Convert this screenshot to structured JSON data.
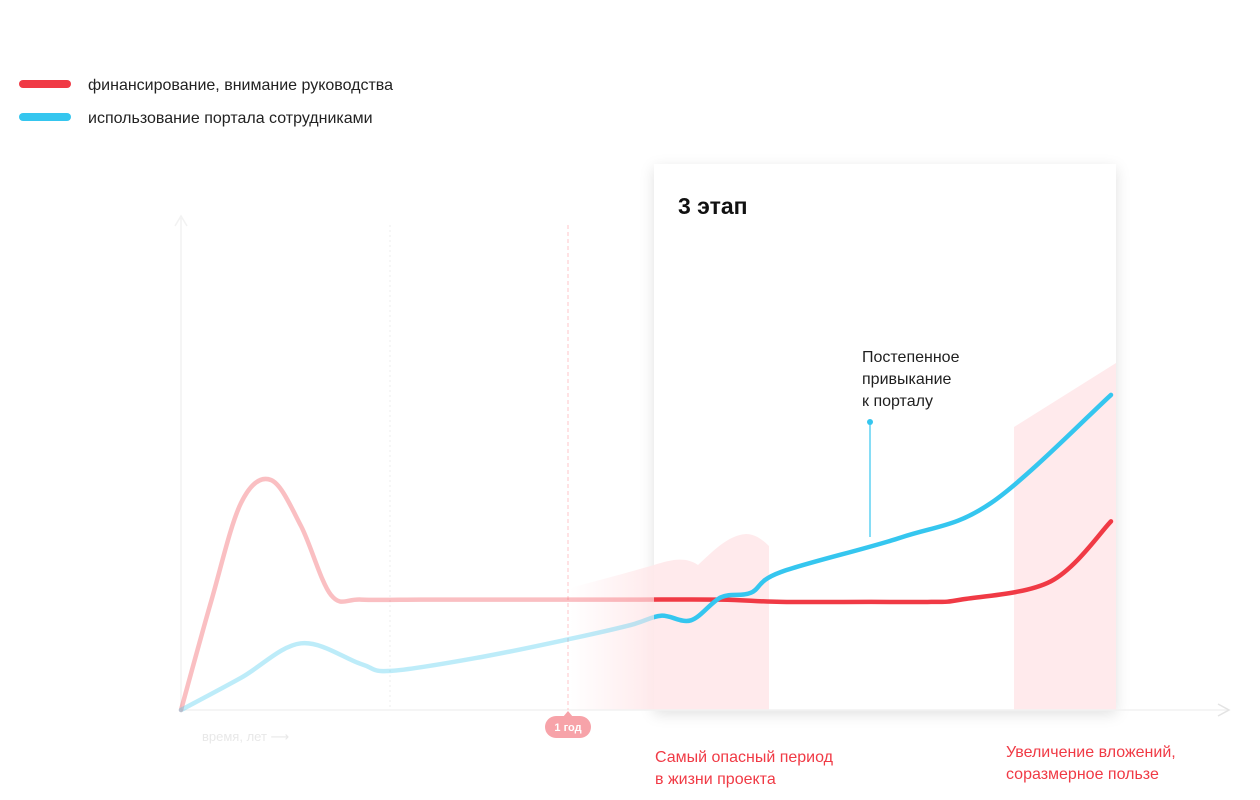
{
  "colors": {
    "funding": "#f03a45",
    "usage": "#35c6ef",
    "accent_text": "#f03a45",
    "band": "#ffe8ea"
  },
  "legend": [
    {
      "label": "финансирование, внимание руководства",
      "color": "#f03a45"
    },
    {
      "label": "использование портала сотрудниками",
      "color": "#35c6ef"
    }
  ],
  "stage": {
    "title": "3 этап"
  },
  "callout": {
    "lines": [
      "Постепенное",
      "привыкание",
      "к порталу"
    ]
  },
  "notes": [
    {
      "lines": [
        "Самый опасный период",
        "в жизни проекта"
      ]
    },
    {
      "lines": [
        "Увеличение вложений,",
        "соразмерное пользе"
      ]
    }
  ],
  "axis": {
    "x_label": "время, лет ⟶",
    "marker_label": "1 год"
  },
  "chart_data": {
    "type": "line",
    "title": "",
    "xlabel": "время, лет ⟶",
    "ylabel": "",
    "grid": false,
    "legend_position": "top-left",
    "x_marker": {
      "label": "1 год",
      "x": 1
    },
    "highlight_stage": {
      "label": "3 этап",
      "x_range": [
        1.5,
        3.1
      ]
    },
    "series": [
      {
        "name": "финансирование, внимание руководства",
        "color": "#f03a45",
        "points": [
          [
            0.0,
            0.0
          ],
          [
            0.1,
            0.47
          ],
          [
            0.2,
            0.9
          ],
          [
            0.3,
            1.0
          ],
          [
            0.4,
            0.8
          ],
          [
            0.5,
            0.5
          ],
          [
            0.6,
            0.48
          ],
          [
            0.8,
            0.48
          ],
          [
            1.0,
            0.48
          ],
          [
            1.2,
            0.48
          ],
          [
            1.5,
            0.48
          ],
          [
            1.8,
            0.48
          ],
          [
            2.0,
            0.47
          ],
          [
            2.3,
            0.47
          ],
          [
            2.5,
            0.47
          ],
          [
            2.6,
            0.48
          ],
          [
            2.9,
            0.56
          ],
          [
            3.1,
            0.82
          ]
        ]
      },
      {
        "name": "использование портала сотрудниками",
        "color": "#35c6ef",
        "points": [
          [
            0.0,
            0.0
          ],
          [
            0.2,
            0.14
          ],
          [
            0.4,
            0.29
          ],
          [
            0.6,
            0.2
          ],
          [
            0.7,
            0.17
          ],
          [
            1.0,
            0.23
          ],
          [
            1.3,
            0.31
          ],
          [
            1.5,
            0.37
          ],
          [
            1.6,
            0.41
          ],
          [
            1.7,
            0.39
          ],
          [
            1.8,
            0.49
          ],
          [
            1.9,
            0.51
          ],
          [
            2.0,
            0.6
          ],
          [
            2.4,
            0.75
          ],
          [
            2.7,
            0.9
          ],
          [
            3.1,
            1.37
          ]
        ]
      }
    ],
    "annotations": [
      {
        "text": "Постепенное привыкание к порталу",
        "series": "использование портала сотрудниками",
        "x": 2.4
      },
      {
        "text": "Самый опасный период в жизни проекта",
        "x_range": [
          1.5,
          1.9
        ]
      },
      {
        "text": "Увеличение вложений, соразмерное пользе",
        "x_range": [
          2.8,
          3.1
        ]
      }
    ]
  }
}
